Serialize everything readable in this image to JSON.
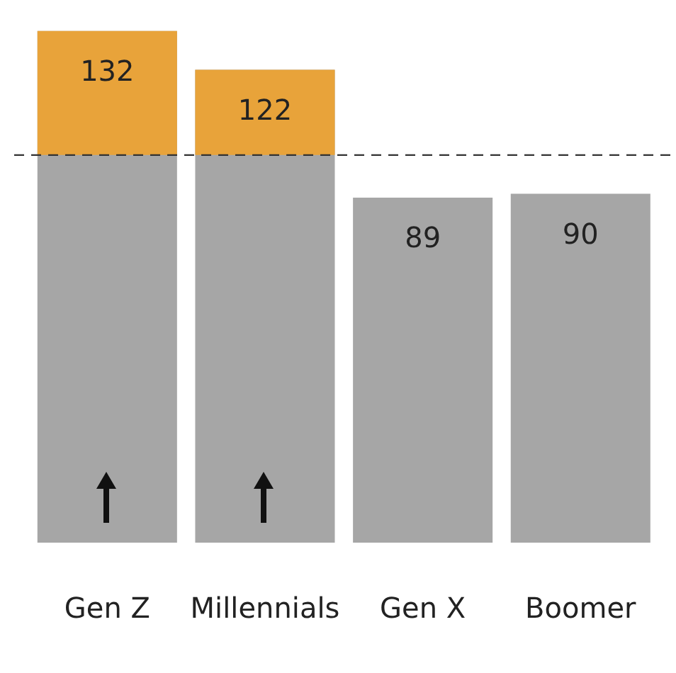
{
  "chart_data": {
    "type": "bar",
    "categories": [
      "Gen Z",
      "Millennials",
      "Gen X",
      "Boomer"
    ],
    "series": [
      {
        "color": "#a6a6a6",
        "values": [
          132,
          122,
          89,
          90
        ]
      }
    ],
    "data_labels": true,
    "tick_labels": "x",
    "grid": false,
    "legend": false,
    "ref_lines": [
      {
        "axis": "y",
        "value": 100,
        "line_style": "dashed",
        "color": "#333333"
      }
    ],
    "bands": [
      {
        "axis": "y",
        "from": 100,
        "to": 132,
        "color": "#e8a33a"
      }
    ]
  }
}
